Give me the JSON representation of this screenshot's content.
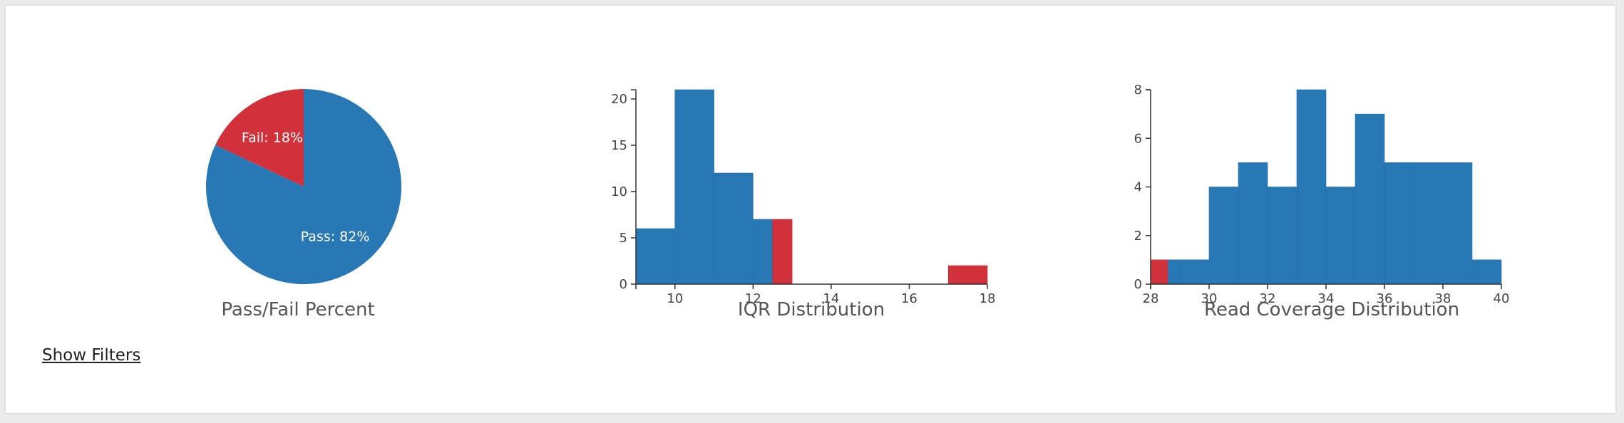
{
  "colors": {
    "pass": "#2878b5",
    "fail": "#d1313b"
  },
  "links": {
    "show_filters": "Show Filters"
  },
  "chart_data": [
    {
      "type": "pie",
      "title": "Pass/Fail Percent",
      "slices": [
        {
          "label": "Pass",
          "value": 82,
          "display": "Pass: 82%",
          "color": "#2878b5"
        },
        {
          "label": "Fail",
          "value": 18,
          "display": "Fail: 18%",
          "color": "#d1313b"
        }
      ]
    },
    {
      "type": "bar",
      "title": "IQR Distribution",
      "xlim": [
        9,
        18
      ],
      "ylim": [
        0,
        21
      ],
      "x_ticks": [
        10,
        12,
        14,
        16,
        18
      ],
      "y_ticks": [
        0,
        5,
        10,
        15,
        20
      ],
      "bins": [
        {
          "x0": 9.0,
          "x1": 10.0,
          "count": 6,
          "status": "pass"
        },
        {
          "x0": 10.0,
          "x1": 11.0,
          "count": 21,
          "status": "pass"
        },
        {
          "x0": 11.0,
          "x1": 12.0,
          "count": 12,
          "status": "pass"
        },
        {
          "x0": 12.0,
          "x1": 12.5,
          "count": 7,
          "status": "pass"
        },
        {
          "x0": 12.5,
          "x1": 13.0,
          "count": 7,
          "status": "fail"
        },
        {
          "x0": 17.0,
          "x1": 18.0,
          "count": 2,
          "status": "fail"
        }
      ]
    },
    {
      "type": "bar",
      "title": "Read Coverage Distribution",
      "xlim": [
        28,
        40
      ],
      "ylim": [
        0,
        8
      ],
      "x_ticks": [
        28,
        30,
        32,
        34,
        36,
        38,
        40
      ],
      "y_ticks": [
        0,
        2,
        4,
        6,
        8
      ],
      "bins": [
        {
          "x0": 28.0,
          "x1": 28.6,
          "count": 1,
          "status": "fail"
        },
        {
          "x0": 28.6,
          "x1": 29.0,
          "count": 1,
          "status": "pass"
        },
        {
          "x0": 29.0,
          "x1": 30.0,
          "count": 1,
          "status": "pass"
        },
        {
          "x0": 30.0,
          "x1": 31.0,
          "count": 4,
          "status": "pass"
        },
        {
          "x0": 31.0,
          "x1": 32.0,
          "count": 5,
          "status": "pass"
        },
        {
          "x0": 32.0,
          "x1": 33.0,
          "count": 4,
          "status": "pass"
        },
        {
          "x0": 33.0,
          "x1": 34.0,
          "count": 8,
          "status": "pass"
        },
        {
          "x0": 34.0,
          "x1": 35.0,
          "count": 4,
          "status": "pass"
        },
        {
          "x0": 35.0,
          "x1": 36.0,
          "count": 7,
          "status": "pass"
        },
        {
          "x0": 36.0,
          "x1": 37.0,
          "count": 5,
          "status": "pass"
        },
        {
          "x0": 37.0,
          "x1": 38.0,
          "count": 5,
          "status": "pass"
        },
        {
          "x0": 38.0,
          "x1": 39.0,
          "count": 5,
          "status": "pass"
        },
        {
          "x0": 39.0,
          "x1": 40.0,
          "count": 1,
          "status": "pass"
        }
      ]
    }
  ]
}
